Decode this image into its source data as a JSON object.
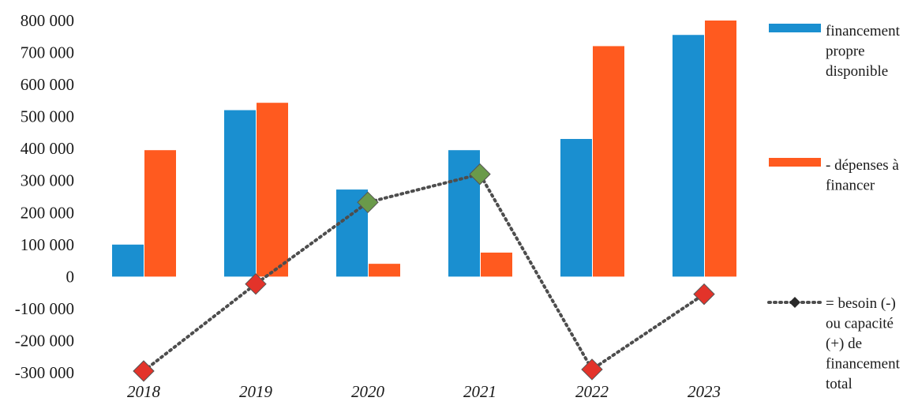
{
  "chart_data": {
    "type": "bar",
    "categories": [
      "2018",
      "2019",
      "2020",
      "2021",
      "2022",
      "2023"
    ],
    "series": [
      {
        "name": "financement propre disponible",
        "kind": "bar",
        "color": "#1a8fd0",
        "values": [
          100000,
          520000,
          272000,
          395000,
          430000,
          755000
        ]
      },
      {
        "name": "- dépenses à financer",
        "kind": "bar",
        "color": "#ff5a1f",
        "values": [
          395000,
          543000,
          40000,
          75000,
          720000,
          800000
        ]
      },
      {
        "name": "= besoin (-) ou capacité (+) de financement total",
        "kind": "line",
        "line_style": "dotted",
        "marker": "diamond",
        "color": "#4d4d4d",
        "positive_marker_color": "#6a9a4a",
        "negative_marker_color": "#e3332a",
        "values": [
          -295000,
          -23000,
          232000,
          320000,
          -290000,
          -55000
        ]
      }
    ],
    "y_ticks": [
      "800 000",
      "700 000",
      "600 000",
      "500 000",
      "400 000",
      "300 000",
      "200 000",
      "100 000",
      "0",
      "-100 000",
      "-200 000",
      "-300 000"
    ],
    "ylim": [
      -300000,
      800000
    ],
    "grid": false,
    "legend_position": "right",
    "legend": [
      {
        "lines": [
          "financement",
          "propre",
          "disponible"
        ]
      },
      {
        "lines": [
          "- dépenses à",
          "financer"
        ]
      },
      {
        "lines": [
          "= besoin (-)",
          "ou capacité",
          "(+) de",
          "financement",
          "total"
        ]
      }
    ]
  }
}
